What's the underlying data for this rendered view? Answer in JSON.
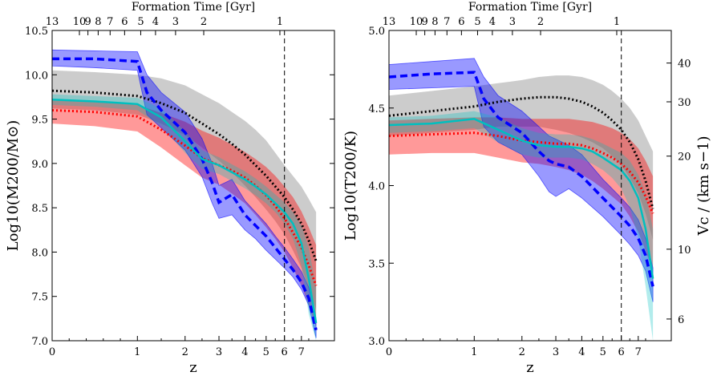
{
  "chart_data": [
    {
      "type": "area",
      "panel": "left",
      "xlabel": "z",
      "top_label": "Formation Time [Gyr]",
      "ylabel": "Log10(M200/M⊙)",
      "ylim": [
        7.0,
        10.5
      ],
      "y_ticks": [
        "7.0",
        "7.5",
        "8.0",
        "8.5",
        "9.0",
        "9.5",
        "10.0",
        "10.5"
      ],
      "x_ticks": [
        "0",
        "1",
        "2",
        "3",
        "4",
        "5",
        "6",
        "7"
      ],
      "top_ticks": [
        "13",
        "10",
        "9",
        "8",
        "7",
        "6",
        "5",
        "4",
        "3",
        "2",
        "1"
      ],
      "vline_z": 6,
      "series": [
        {
          "color": "#808080",
          "style": "dotted",
          "z": [
            0,
            0.5,
            1,
            1.5,
            2,
            2.5,
            3,
            3.5,
            4,
            4.5,
            5,
            5.5,
            6,
            6.5,
            7,
            7.5,
            8
          ],
          "median": [
            9.82,
            9.8,
            9.76,
            9.68,
            9.57,
            9.45,
            9.33,
            9.22,
            9.1,
            8.98,
            8.86,
            8.74,
            8.62,
            8.48,
            8.32,
            8.13,
            7.9
          ],
          "low": [
            9.62,
            9.6,
            9.55,
            9.45,
            9.32,
            9.18,
            9.03,
            8.9,
            8.75,
            8.62,
            8.48,
            8.35,
            8.2,
            8.02,
            7.82,
            7.6,
            7.35
          ],
          "high": [
            10.05,
            10.03,
            10.0,
            9.96,
            9.88,
            9.78,
            9.68,
            9.58,
            9.48,
            9.38,
            9.26,
            9.12,
            8.98,
            8.86,
            8.74,
            8.6,
            8.45
          ]
        },
        {
          "color": "#ff0000",
          "style": "dotted",
          "z": [
            0,
            0.5,
            1,
            1.5,
            2,
            2.5,
            3,
            3.5,
            4,
            4.5,
            5,
            5.5,
            6,
            6.5,
            7,
            7.5,
            8
          ],
          "median": [
            9.6,
            9.58,
            9.53,
            9.38,
            9.2,
            9.06,
            8.98,
            8.92,
            8.84,
            8.75,
            8.64,
            8.52,
            8.38,
            8.22,
            8.05,
            7.85,
            7.62
          ],
          "low": [
            9.45,
            9.42,
            9.36,
            9.18,
            8.98,
            8.84,
            8.76,
            8.66,
            8.55,
            8.42,
            8.28,
            8.15,
            8.0,
            7.82,
            7.62,
            7.4,
            7.15
          ],
          "high": [
            9.72,
            9.7,
            9.66,
            9.57,
            9.47,
            9.37,
            9.29,
            9.21,
            9.13,
            9.05,
            8.96,
            8.86,
            8.74,
            8.62,
            8.46,
            8.28,
            8.08
          ]
        },
        {
          "color": "#0000ff",
          "style": "dashed",
          "z": [
            0,
            0.5,
            1,
            1.2,
            1.5,
            2,
            2.5,
            2.8,
            3,
            3.5,
            4,
            4.5,
            5,
            5.5,
            6,
            6.5,
            7,
            7.5,
            8
          ],
          "median": [
            10.18,
            10.18,
            10.15,
            9.8,
            9.6,
            9.35,
            9.05,
            8.78,
            8.56,
            8.65,
            8.42,
            8.3,
            8.18,
            8.05,
            7.92,
            7.8,
            7.66,
            7.48,
            7.12
          ],
          "low": [
            10.1,
            10.08,
            10.05,
            9.55,
            9.4,
            9.15,
            8.85,
            8.55,
            8.38,
            8.42,
            8.25,
            8.15,
            8.02,
            7.92,
            7.82,
            7.72,
            7.58,
            7.4,
            7.03
          ],
          "high": [
            10.28,
            10.27,
            10.26,
            10.0,
            9.8,
            9.58,
            9.28,
            9.0,
            8.75,
            8.82,
            8.58,
            8.45,
            8.32,
            8.18,
            8.05,
            7.92,
            7.78,
            7.6,
            7.25
          ]
        },
        {
          "color": "#00bfbf",
          "style": "solid",
          "z": [
            0,
            0.5,
            1,
            1.5,
            2,
            2.5,
            3,
            3.5,
            4,
            4.5,
            5,
            5.5,
            6,
            6.5,
            7,
            7.5,
            8
          ],
          "median": [
            9.72,
            9.7,
            9.67,
            9.52,
            9.25,
            9.05,
            8.98,
            8.9,
            8.82,
            8.74,
            8.65,
            8.55,
            8.45,
            8.32,
            8.1,
            7.7,
            7.2
          ],
          "low": [
            9.66,
            9.64,
            9.6,
            9.42,
            9.12,
            8.94,
            8.88,
            8.8,
            8.72,
            8.64,
            8.55,
            8.45,
            8.32,
            8.15,
            7.85,
            7.3,
            7.0
          ],
          "high": [
            9.78,
            9.76,
            9.74,
            9.62,
            9.36,
            9.15,
            9.07,
            8.99,
            8.91,
            8.83,
            8.74,
            8.65,
            8.56,
            8.45,
            8.3,
            8.05,
            7.6
          ]
        }
      ]
    },
    {
      "type": "area",
      "panel": "right",
      "xlabel": "z",
      "top_label": "Formation Time [Gyr]",
      "ylabel": "Log10(T200/K)",
      "ylim": [
        3.0,
        5.0
      ],
      "y_ticks": [
        "3.0",
        "3.5",
        "4.0",
        "4.5",
        "5.0"
      ],
      "x_ticks": [
        "0",
        "1",
        "2",
        "3",
        "4",
        "5",
        "6",
        "7"
      ],
      "top_ticks": [
        "13",
        "10",
        "9",
        "8",
        "7",
        "6",
        "5",
        "4",
        "3",
        "2",
        "1"
      ],
      "right_ylabel": "Vc / (km s−1)",
      "right_ticks": [
        {
          "label": "40",
          "logT": 4.79
        },
        {
          "label": "30",
          "logT": 4.54
        },
        {
          "label": "20",
          "logT": 4.19
        },
        {
          "label": "10",
          "logT": 3.59
        },
        {
          "label": "6",
          "logT": 3.14
        }
      ],
      "vline_z": 6,
      "series": [
        {
          "color": "#808080",
          "style": "dotted",
          "z": [
            0,
            0.5,
            1,
            1.5,
            2,
            2.5,
            3,
            3.5,
            4,
            4.5,
            5,
            5.5,
            6,
            6.5,
            7,
            7.5,
            8
          ],
          "median": [
            4.45,
            4.48,
            4.51,
            4.54,
            4.56,
            4.57,
            4.57,
            4.56,
            4.54,
            4.51,
            4.47,
            4.42,
            4.36,
            4.28,
            4.17,
            4.03,
            3.85
          ],
          "low": [
            4.32,
            4.34,
            4.36,
            4.38,
            4.38,
            4.38,
            4.36,
            4.34,
            4.31,
            4.28,
            4.24,
            4.19,
            4.13,
            4.05,
            3.95,
            3.82,
            3.65
          ],
          "high": [
            4.58,
            4.61,
            4.64,
            4.66,
            4.68,
            4.7,
            4.71,
            4.71,
            4.7,
            4.68,
            4.65,
            4.61,
            4.56,
            4.5,
            4.42,
            4.32,
            4.22
          ]
        },
        {
          "color": "#ff0000",
          "style": "dotted",
          "z": [
            0,
            0.5,
            1,
            1.5,
            2,
            2.5,
            3,
            3.5,
            4,
            4.5,
            5,
            5.5,
            6,
            6.5,
            7,
            7.5,
            8
          ],
          "median": [
            4.32,
            4.33,
            4.34,
            4.32,
            4.29,
            4.28,
            4.27,
            4.27,
            4.26,
            4.24,
            4.21,
            4.18,
            4.14,
            4.09,
            4.02,
            3.93,
            3.82
          ],
          "low": [
            4.2,
            4.21,
            4.21,
            4.18,
            4.15,
            4.14,
            4.12,
            4.1,
            4.07,
            4.03,
            3.98,
            3.93,
            3.88,
            3.8,
            3.7,
            3.58,
            3.45
          ],
          "high": [
            4.42,
            4.43,
            4.44,
            4.44,
            4.43,
            4.43,
            4.43,
            4.43,
            4.42,
            4.41,
            4.39,
            4.37,
            4.34,
            4.3,
            4.24,
            4.16,
            4.06
          ]
        },
        {
          "color": "#0000ff",
          "style": "dashed",
          "z": [
            0,
            0.5,
            1,
            1.2,
            1.5,
            2,
            2.5,
            2.8,
            3,
            3.5,
            4,
            4.5,
            5,
            5.5,
            6,
            6.5,
            7,
            7.5,
            8
          ],
          "median": [
            4.7,
            4.72,
            4.73,
            4.56,
            4.44,
            4.34,
            4.22,
            4.16,
            4.14,
            4.12,
            4.06,
            3.99,
            3.92,
            3.86,
            3.8,
            3.74,
            3.66,
            3.55,
            3.35
          ],
          "low": [
            4.62,
            4.63,
            4.64,
            4.38,
            4.28,
            4.2,
            4.06,
            3.96,
            3.93,
            3.98,
            3.92,
            3.86,
            3.8,
            3.74,
            3.68,
            3.62,
            3.55,
            3.45,
            3.25
          ],
          "high": [
            4.78,
            4.8,
            4.82,
            4.7,
            4.58,
            4.48,
            4.38,
            4.32,
            4.3,
            4.26,
            4.2,
            4.12,
            4.04,
            3.98,
            3.92,
            3.86,
            3.78,
            3.66,
            3.47
          ]
        },
        {
          "color": "#00bfbf",
          "style": "solid",
          "z": [
            0,
            0.5,
            1,
            1.5,
            2,
            2.5,
            3,
            3.5,
            4,
            4.5,
            5,
            5.5,
            6,
            6.5,
            7,
            7.5,
            8
          ],
          "median": [
            4.39,
            4.4,
            4.43,
            4.36,
            4.29,
            4.26,
            4.25,
            4.25,
            4.24,
            4.22,
            4.18,
            4.14,
            4.1,
            4.03,
            3.92,
            3.72,
            3.4
          ],
          "low": [
            4.34,
            4.35,
            4.37,
            4.28,
            4.2,
            4.18,
            4.18,
            4.18,
            4.17,
            4.14,
            4.1,
            4.05,
            3.98,
            3.86,
            3.66,
            3.35,
            3.0
          ],
          "high": [
            4.44,
            4.45,
            4.48,
            4.44,
            4.37,
            4.34,
            4.33,
            4.33,
            4.32,
            4.3,
            4.27,
            4.24,
            4.21,
            4.16,
            4.07,
            3.95,
            3.72
          ]
        }
      ]
    }
  ]
}
